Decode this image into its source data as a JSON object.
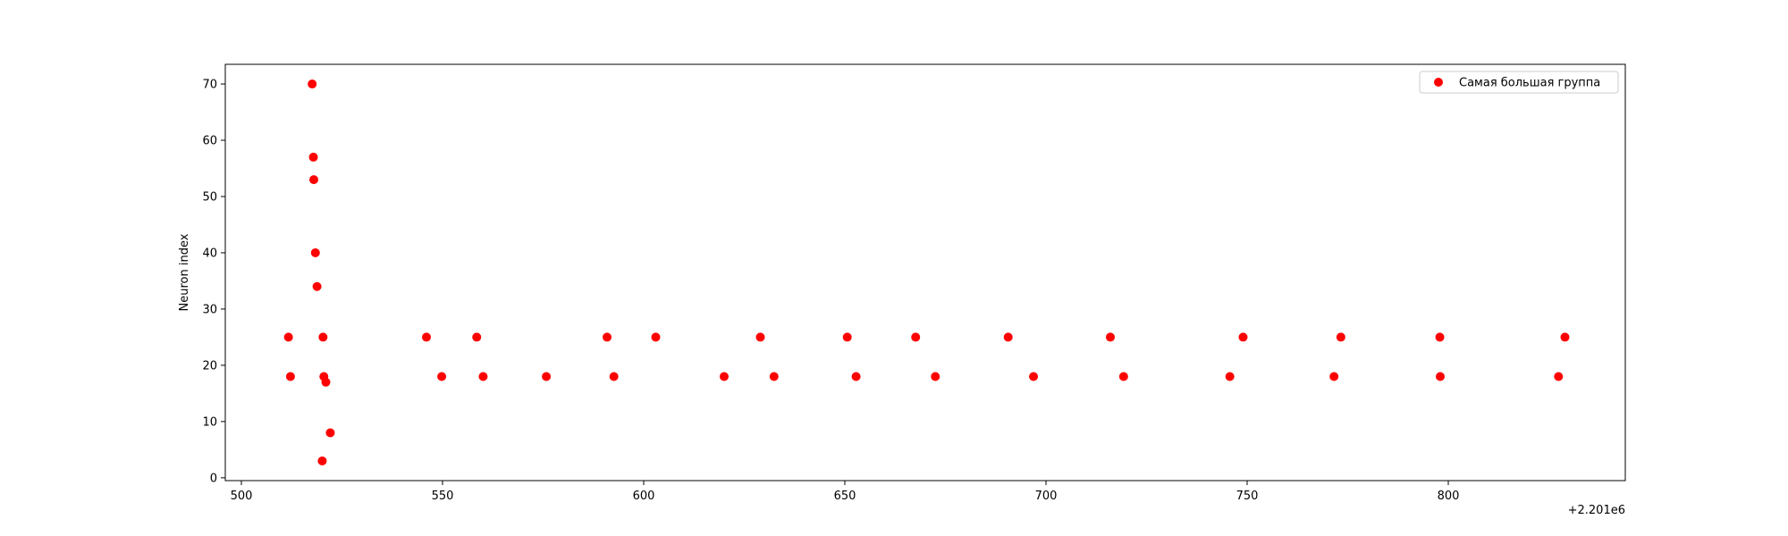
{
  "chart_data": {
    "type": "scatter",
    "xlabel": "",
    "ylabel": "Neuron index",
    "x_offset_label": "+2.201e6",
    "xlim": [
      496,
      844
    ],
    "ylim": [
      -0.5,
      73.5
    ],
    "x_ticks": [
      500,
      550,
      600,
      650,
      700,
      750,
      800
    ],
    "y_ticks": [
      0,
      10,
      20,
      30,
      40,
      50,
      60,
      70
    ],
    "grid": false,
    "legend_position": "top-right",
    "series": [
      {
        "name": "Самая большая группа",
        "color": "#ff0000",
        "points": [
          [
            511.7,
            25
          ],
          [
            512.2,
            18
          ],
          [
            517.6,
            70
          ],
          [
            517.9,
            57
          ],
          [
            518.0,
            53
          ],
          [
            518.4,
            40
          ],
          [
            518.8,
            34
          ],
          [
            520.1,
            3
          ],
          [
            520.3,
            25
          ],
          [
            520.5,
            18
          ],
          [
            521.0,
            17
          ],
          [
            522.1,
            8
          ],
          [
            546.0,
            25
          ],
          [
            549.8,
            18
          ],
          [
            558.5,
            25
          ],
          [
            560.1,
            18
          ],
          [
            575.8,
            18
          ],
          [
            590.9,
            25
          ],
          [
            592.6,
            18
          ],
          [
            603.0,
            25
          ],
          [
            620.0,
            18
          ],
          [
            629.0,
            25
          ],
          [
            632.4,
            18
          ],
          [
            650.6,
            25
          ],
          [
            652.8,
            18
          ],
          [
            667.6,
            25
          ],
          [
            672.5,
            18
          ],
          [
            690.6,
            25
          ],
          [
            696.9,
            18
          ],
          [
            716.0,
            25
          ],
          [
            719.3,
            18
          ],
          [
            745.7,
            18
          ],
          [
            749.0,
            25
          ],
          [
            771.6,
            18
          ],
          [
            773.3,
            25
          ],
          [
            797.9,
            25
          ],
          [
            798.0,
            18
          ],
          [
            827.4,
            18
          ],
          [
            829.0,
            25
          ]
        ]
      }
    ]
  }
}
